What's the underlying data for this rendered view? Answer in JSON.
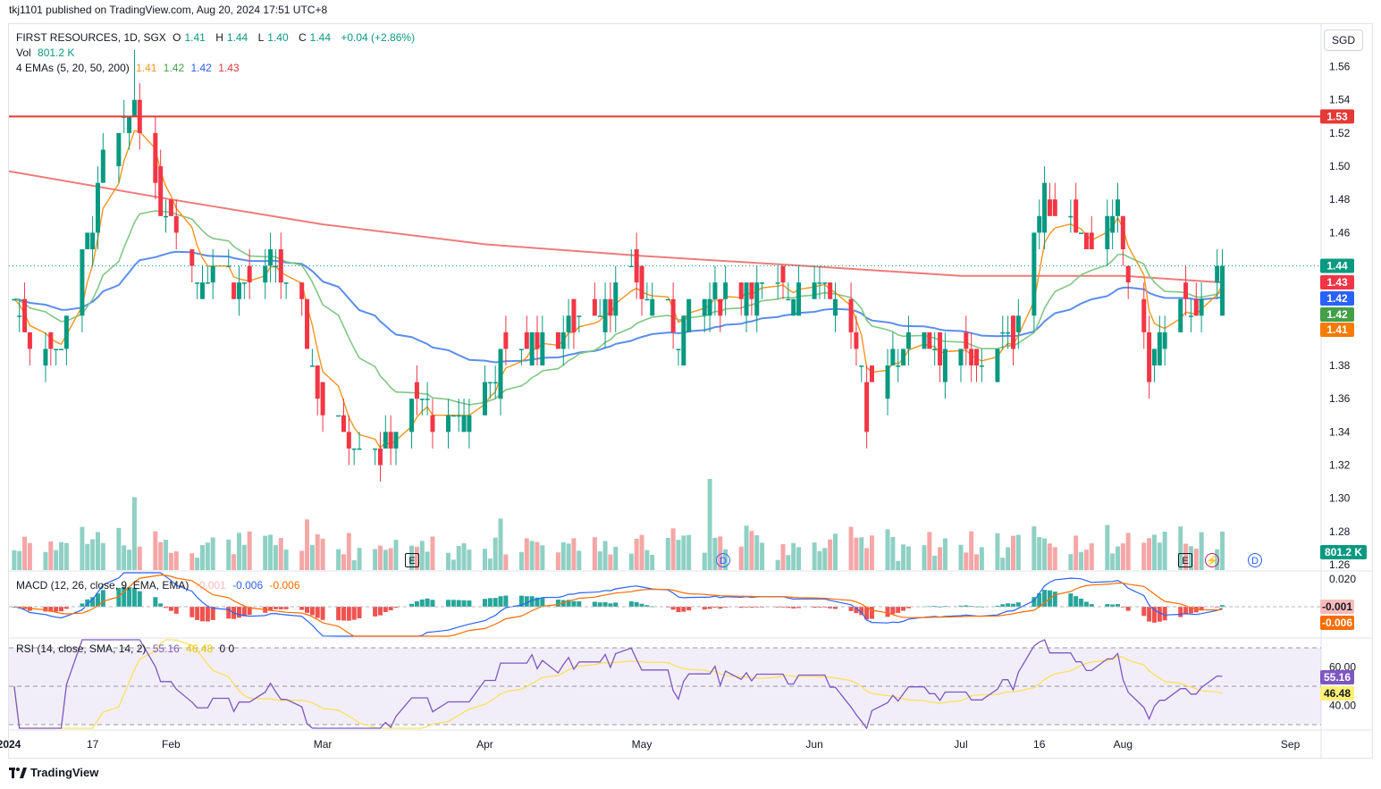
{
  "header": {
    "publisher_line": "tkj1101 published on TradingView.com, Aug 20, 2024 17:51 UTC+8"
  },
  "legend": {
    "symbol": "FIRST RESOURCES, 1D, SGX",
    "open_label": "O",
    "open": "1.41",
    "high_label": "H",
    "high": "1.44",
    "low_label": "L",
    "low": "1.40",
    "close_label": "C",
    "close": "1.44",
    "change": "+0.04 (+2.86%)",
    "vol_label": "Vol",
    "vol_value": "801.2 K",
    "ema_label": "4 EMAs (5, 20, 50, 200)",
    "ema_values": [
      "1.41",
      "1.42",
      "1.42",
      "1.43"
    ],
    "macd_label": "MACD (12, 26, close, 9, EMA, EMA)",
    "macd_values": [
      "-0.001",
      "-0.006",
      "-0.006"
    ],
    "rsi_label": "RSI (14, close, SMA, 14, 2)",
    "rsi_values": [
      "55.16",
      "46.48"
    ],
    "rsi_extra": "0  0"
  },
  "currency": "SGD",
  "price_axis": [
    "1.56",
    "1.54",
    "1.52",
    "1.50",
    "1.48",
    "1.46",
    "1.44",
    "1.42",
    "1.40",
    "1.38",
    "1.36",
    "1.34",
    "1.32",
    "1.30",
    "1.28",
    "1.26"
  ],
  "price_tags": [
    {
      "label": "1.53",
      "color": "#e53935",
      "value": 1.53
    },
    {
      "label": "1.44",
      "color": "#089981",
      "value": 1.44
    },
    {
      "label": "1.43",
      "color": "#f23645",
      "value": 1.43
    },
    {
      "label": "1.42",
      "color": "#2962ff",
      "value": 1.42
    },
    {
      "label": "1.42",
      "color": "#43a047",
      "value": 1.42
    },
    {
      "label": "1.41",
      "color": "#f57c00",
      "value": 1.41
    }
  ],
  "vol_tag": {
    "label": "801.2 K",
    "color": "#089981"
  },
  "macd_axis": {
    "top": "0.020"
  },
  "macd_tags": [
    {
      "label": "-0.001",
      "color": "#f8bbbb",
      "text": "#131722"
    },
    {
      "label": "-0.006",
      "color": "#ff6d00",
      "text": "#ffffff"
    }
  ],
  "rsi_axis": [
    "60.00",
    "40.00"
  ],
  "rsi_tags": [
    {
      "label": "55.16",
      "color": "#7e57c2",
      "text": "#ffffff"
    },
    {
      "label": "46.48",
      "color": "#fff176",
      "text": "#131722"
    }
  ],
  "time_axis": [
    "2024",
    "17",
    "Feb",
    "Mar",
    "Apr",
    "May",
    "Jun",
    "Jul",
    "16",
    "Aug",
    "Sep"
  ],
  "markers": {
    "earnings": "E",
    "dividend": "D"
  },
  "footer": {
    "brand": "TradingView"
  },
  "colors": {
    "up": "#089981",
    "down": "#f23645",
    "ema5": "#f7941d",
    "ema20": "#81c784",
    "ema50": "#5b8def",
    "ema200": "#ef7b7b",
    "resistance": "#e53935",
    "rsi_line": "#7e57c2",
    "rsi_ma": "#fbe05f"
  },
  "chart_data": {
    "type": "candlestick",
    "title": "FIRST RESOURCES, 1D, SGX",
    "ylim": [
      1.26,
      1.57
    ],
    "resistance_level": 1.53,
    "last_close": 1.44,
    "x_range": [
      "2024-01-01",
      "2024-09-06"
    ],
    "anchors": [
      {
        "date": "2024-01-02",
        "close": 1.42
      },
      {
        "date": "2024-01-05",
        "close": 1.4
      },
      {
        "date": "2024-01-10",
        "close": 1.39
      },
      {
        "date": "2024-01-15",
        "close": 1.44
      },
      {
        "date": "2024-01-17",
        "close": 1.47
      },
      {
        "date": "2024-01-19",
        "close": 1.5
      },
      {
        "date": "2024-01-23",
        "close": 1.52
      },
      {
        "date": "2024-01-25",
        "close": 1.54
      },
      {
        "date": "2024-01-29",
        "close": 1.48
      },
      {
        "date": "2024-02-02",
        "close": 1.47
      },
      {
        "date": "2024-02-06",
        "close": 1.43
      },
      {
        "date": "2024-02-09",
        "close": 1.44
      },
      {
        "date": "2024-02-15",
        "close": 1.43
      },
      {
        "date": "2024-02-21",
        "close": 1.44
      },
      {
        "date": "2024-02-27",
        "close": 1.4
      },
      {
        "date": "2024-03-01",
        "close": 1.35
      },
      {
        "date": "2024-03-06",
        "close": 1.34
      },
      {
        "date": "2024-03-12",
        "close": 1.33
      },
      {
        "date": "2024-03-19",
        "close": 1.36
      },
      {
        "date": "2024-03-25",
        "close": 1.34
      },
      {
        "date": "2024-04-01",
        "close": 1.37
      },
      {
        "date": "2024-04-08",
        "close": 1.39
      },
      {
        "date": "2024-04-15",
        "close": 1.4
      },
      {
        "date": "2024-04-22",
        "close": 1.42
      },
      {
        "date": "2024-04-29",
        "close": 1.43
      },
      {
        "date": "2024-05-03",
        "close": 1.42
      },
      {
        "date": "2024-05-08",
        "close": 1.4
      },
      {
        "date": "2024-05-14",
        "close": 1.42
      },
      {
        "date": "2024-05-20",
        "close": 1.43
      },
      {
        "date": "2024-05-27",
        "close": 1.42
      },
      {
        "date": "2024-06-03",
        "close": 1.44
      },
      {
        "date": "2024-06-10",
        "close": 1.4
      },
      {
        "date": "2024-06-13",
        "close": 1.36
      },
      {
        "date": "2024-06-18",
        "close": 1.39
      },
      {
        "date": "2024-06-24",
        "close": 1.4
      },
      {
        "date": "2024-07-01",
        "close": 1.38
      },
      {
        "date": "2024-07-05",
        "close": 1.38
      },
      {
        "date": "2024-07-11",
        "close": 1.4
      },
      {
        "date": "2024-07-15",
        "close": 1.46
      },
      {
        "date": "2024-07-17",
        "close": 1.48
      },
      {
        "date": "2024-07-22",
        "close": 1.47
      },
      {
        "date": "2024-07-26",
        "close": 1.45
      },
      {
        "date": "2024-07-31",
        "close": 1.47
      },
      {
        "date": "2024-08-02",
        "close": 1.43
      },
      {
        "date": "2024-08-06",
        "close": 1.38
      },
      {
        "date": "2024-08-09",
        "close": 1.4
      },
      {
        "date": "2024-08-14",
        "close": 1.42
      },
      {
        "date": "2024-08-16",
        "close": 1.41
      },
      {
        "date": "2024-08-20",
        "close": 1.44
      }
    ],
    "ema200_points": [
      {
        "date": "2024-01-01",
        "value": 1.497
      },
      {
        "date": "2024-02-01",
        "value": 1.48
      },
      {
        "date": "2024-03-01",
        "value": 1.465
      },
      {
        "date": "2024-04-01",
        "value": 1.453
      },
      {
        "date": "2024-05-01",
        "value": 1.446
      },
      {
        "date": "2024-06-01",
        "value": 1.44
      },
      {
        "date": "2024-07-01",
        "value": 1.434
      },
      {
        "date": "2024-08-01",
        "value": 1.434
      },
      {
        "date": "2024-08-20",
        "value": 1.43
      }
    ],
    "macd": {
      "macd": -0.006,
      "signal": -0.006,
      "histogram": -0.001
    },
    "rsi": {
      "rsi": 55.16,
      "rsi_ma": 46.48,
      "levels": [
        70,
        30
      ]
    },
    "volume_last": "801.2 K"
  }
}
